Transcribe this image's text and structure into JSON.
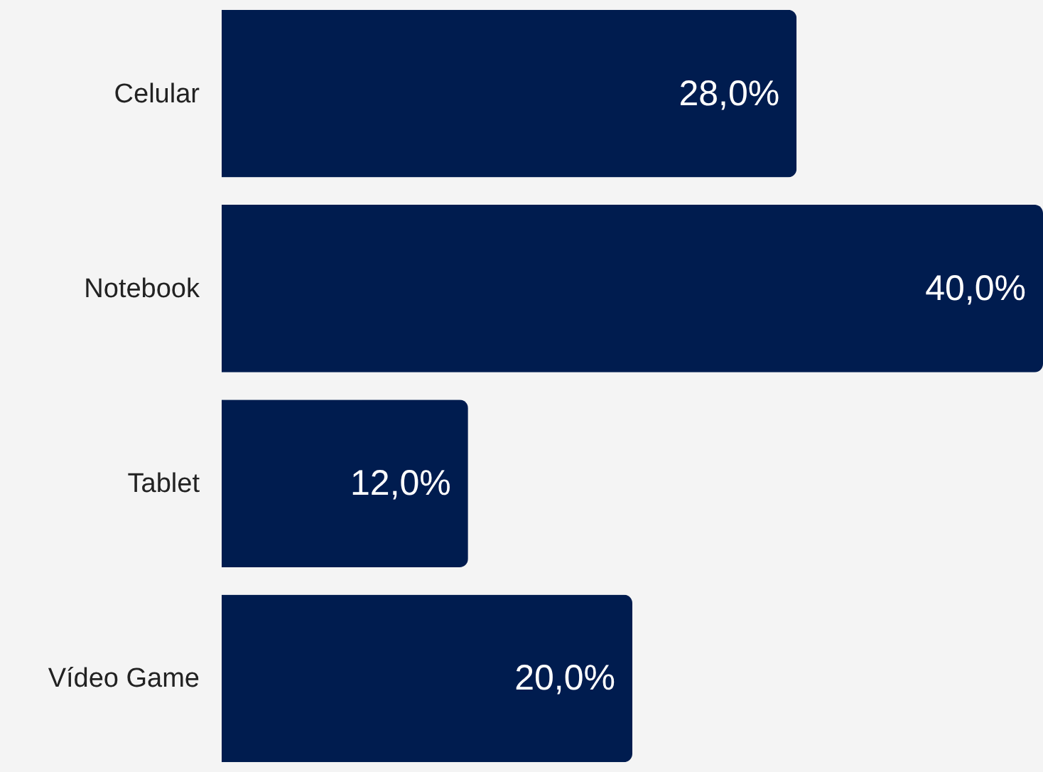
{
  "chart_data": {
    "type": "bar",
    "orientation": "horizontal",
    "categories": [
      "Celular",
      "Notebook",
      "Tablet",
      "Vídeo Game"
    ],
    "values": [
      28,
      40,
      12,
      20
    ],
    "color": "#001c4f",
    "value_labels": [
      "28,0%",
      "40,0%",
      "12,0%",
      "20,0%"
    ]
  }
}
